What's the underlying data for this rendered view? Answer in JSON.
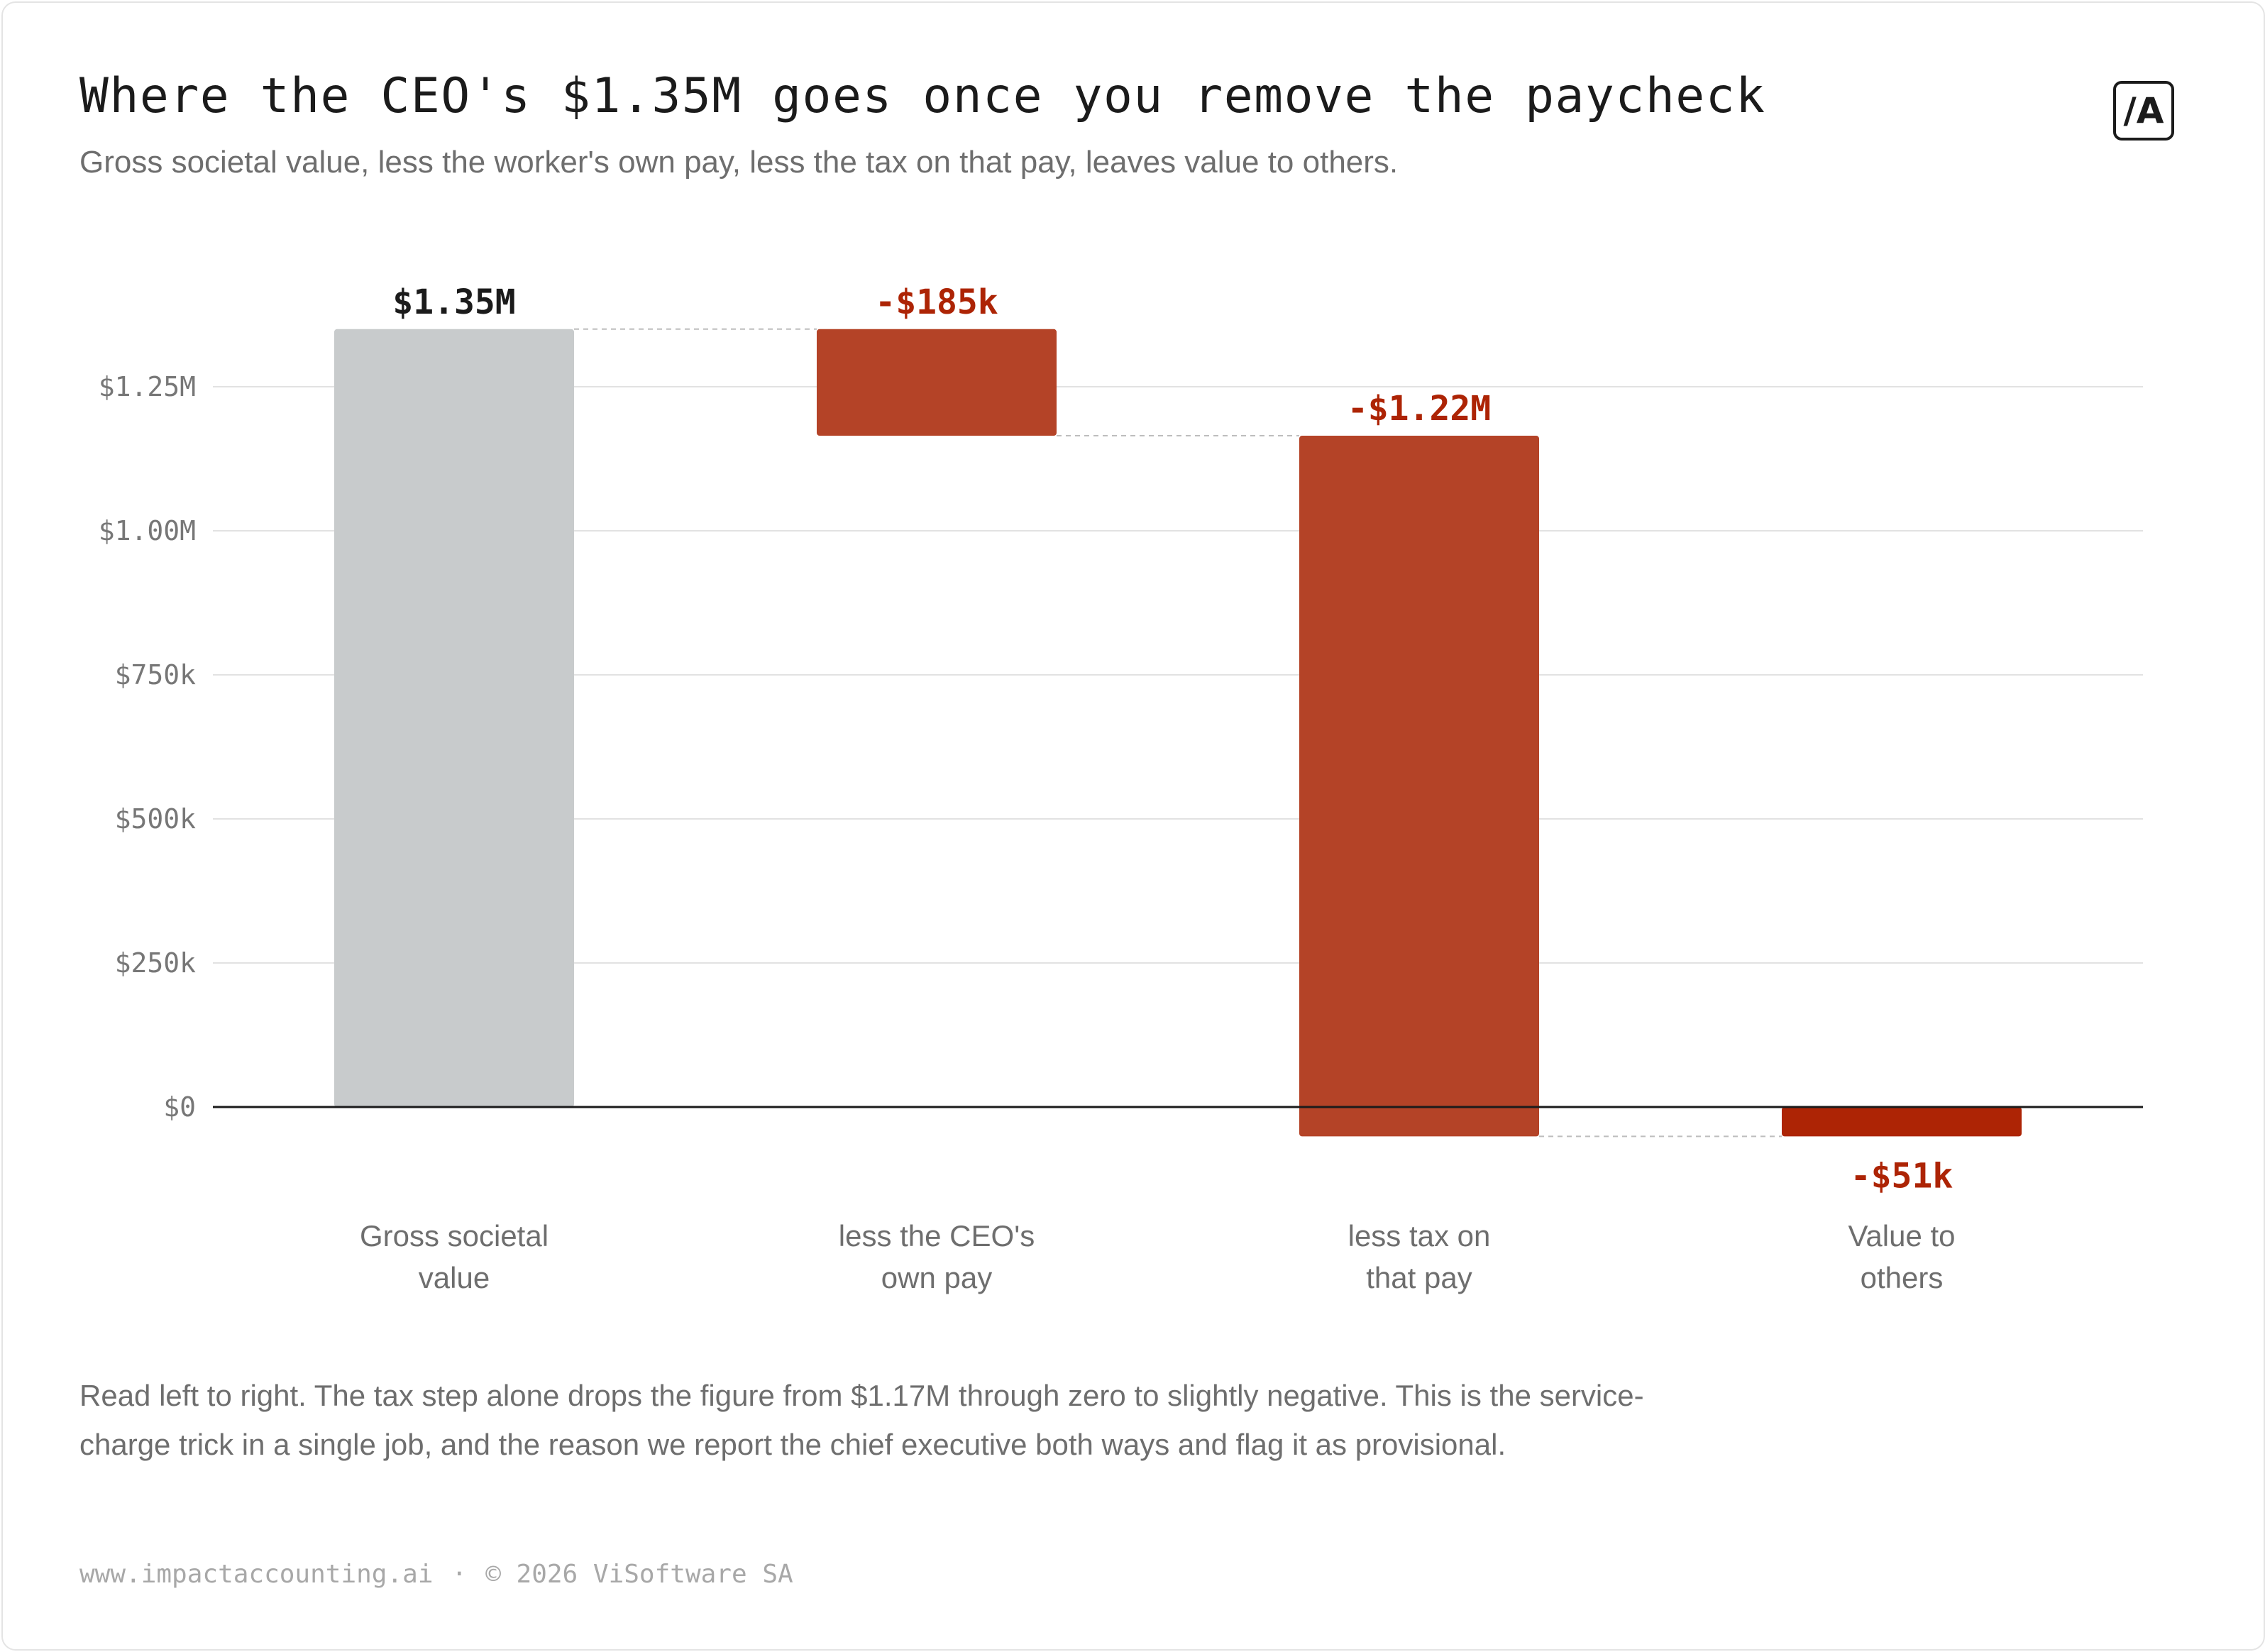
{
  "header": {
    "title": "Where the CEO's $1.35M goes once you remove the paycheck",
    "subtitle": "Gross societal value, less the worker's own pay, less the tax on that pay, leaves value to others.",
    "logo_text": "/A"
  },
  "colors": {
    "total_bar": "#c8cbcc",
    "step_bar": "#b44327",
    "result_bar": "#ad2405",
    "positive_label": "#1b1b1b",
    "negative_label": "#ad2405",
    "grid": "#e2e2e2",
    "axis": "#1b1b1b",
    "connector": "#bdbdbd"
  },
  "chart_data": {
    "type": "bar",
    "subtype": "waterfall",
    "categories": [
      [
        "Gross societal",
        "value"
      ],
      [
        "less the CEO's",
        "own pay"
      ],
      [
        "less tax on",
        "that pay"
      ],
      [
        "Value to",
        "others"
      ]
    ],
    "steps": [
      {
        "kind": "total",
        "start": 0,
        "end": 1350000,
        "label": "$1.35M"
      },
      {
        "kind": "step",
        "start": 1350000,
        "end": 1165000,
        "label": "-$185k"
      },
      {
        "kind": "step",
        "start": 1165000,
        "end": -51000,
        "label": "-$1.22M"
      },
      {
        "kind": "result",
        "start": 0,
        "end": -51000,
        "label": "-$51k"
      }
    ],
    "y_ticks": [
      {
        "value": 0,
        "label": "$0"
      },
      {
        "value": 250000,
        "label": "$250k"
      },
      {
        "value": 500000,
        "label": "$500k"
      },
      {
        "value": 750000,
        "label": "$750k"
      },
      {
        "value": 1000000,
        "label": "$1.00M"
      },
      {
        "value": 1250000,
        "label": "$1.25M"
      }
    ],
    "ylim": [
      -51000,
      1350000
    ],
    "grid": true,
    "legend": "none",
    "xlabel": "",
    "ylabel": ""
  },
  "footnote": "Read left to right. The tax step alone drops the figure from $1.17M through zero to slightly negative. This is the service-charge trick in a single job, and the reason we report the chief executive both ways and flag it as provisional.",
  "footer": {
    "site": "www.impactaccounting.ai",
    "separator": "·",
    "copyright": "© 2026 ViSoftware SA"
  }
}
